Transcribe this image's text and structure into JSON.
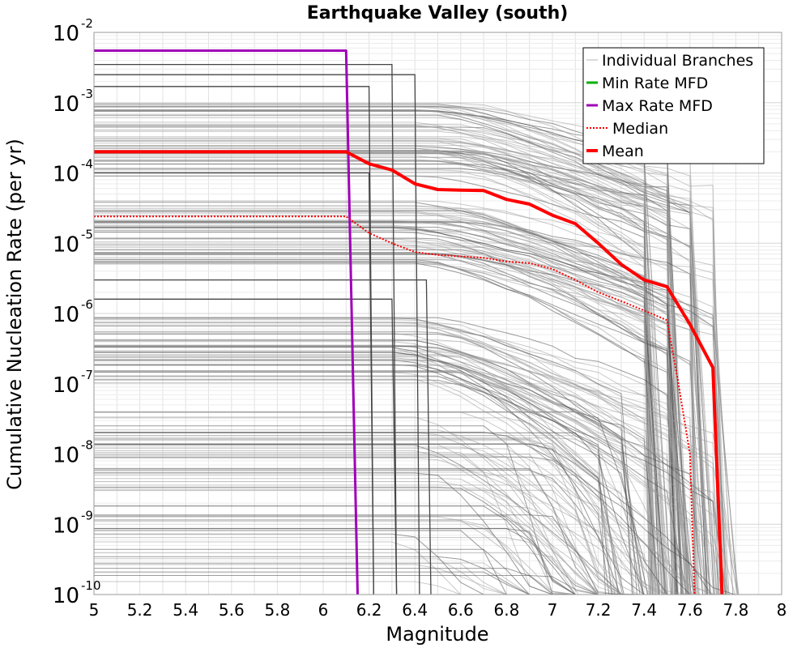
{
  "chart_data": {
    "type": "line",
    "title": "Earthquake Valley (south)",
    "xlabel": "Magnitude",
    "ylabel": "Cumulative Nucleation Rate (per yr)",
    "xlim": [
      5,
      8
    ],
    "ylim": [
      1e-10,
      0.01
    ],
    "yscale": "log",
    "grid": true,
    "legend_position": "top-right",
    "x_ticks": [
      "5",
      "5.2",
      "5.4",
      "5.6",
      "5.8",
      "6",
      "6.2",
      "6.4",
      "6.6",
      "6.8",
      "7",
      "7.2",
      "7.4",
      "7.6",
      "7.8",
      "8"
    ],
    "y_ticks": [
      {
        "base": "10",
        "exp": "-10"
      },
      {
        "base": "10",
        "exp": "-9"
      },
      {
        "base": "10",
        "exp": "-8"
      },
      {
        "base": "10",
        "exp": "-7"
      },
      {
        "base": "10",
        "exp": "-6"
      },
      {
        "base": "10",
        "exp": "-5"
      },
      {
        "base": "10",
        "exp": "-4"
      },
      {
        "base": "10",
        "exp": "-3"
      },
      {
        "base": "10",
        "exp": "-2"
      }
    ],
    "legend": [
      {
        "label": "Individual Branches",
        "color": "#b4b4b4",
        "style": "solid"
      },
      {
        "label": "Min Rate MFD",
        "color": "#00b000",
        "style": "solid"
      },
      {
        "label": "Max Rate MFD",
        "color": "#a000b8",
        "style": "solid"
      },
      {
        "label": "Median",
        "color": "#ff0000",
        "style": "dotted"
      },
      {
        "label": "Mean",
        "color": "#ff0000",
        "style": "solid"
      }
    ],
    "series": [
      {
        "name": "Max Rate MFD",
        "color": "#a000b8",
        "x": [
          5.0,
          6.1,
          6.15
        ],
        "y": [
          0.0055,
          0.0055,
          1e-10
        ]
      },
      {
        "name": "Median",
        "color": "#ff0000",
        "x": [
          5.0,
          6.1,
          6.2,
          6.3,
          6.4,
          6.5,
          6.6,
          6.7,
          6.8,
          6.9,
          7.0,
          7.1,
          7.2,
          7.3,
          7.4,
          7.5,
          7.55,
          7.6,
          7.62
        ],
        "y": [
          2.4e-05,
          2.4e-05,
          1.4e-05,
          1e-05,
          7.5e-06,
          6.8e-06,
          6.5e-06,
          6.2e-06,
          5.5e-06,
          5.2e-06,
          4.3e-06,
          3e-06,
          2e-06,
          1.5e-06,
          1.1e-06,
          8e-07,
          1e-07,
          1e-08,
          1e-10
        ]
      },
      {
        "name": "Mean",
        "color": "#ff0000",
        "x": [
          5.0,
          6.1,
          6.2,
          6.3,
          6.4,
          6.5,
          6.6,
          6.7,
          6.8,
          6.9,
          7.0,
          7.1,
          7.2,
          7.3,
          7.4,
          7.5,
          7.6,
          7.7,
          7.74
        ],
        "y": [
          0.0002,
          0.0002,
          0.000135,
          0.00011,
          7e-05,
          5.8e-05,
          5.7e-05,
          5.6e-05,
          4.2e-05,
          3.6e-05,
          2.5e-05,
          1.9e-05,
          1e-05,
          5e-06,
          3e-06,
          2.4e-06,
          7e-07,
          1.7e-07,
          1e-10
        ]
      }
    ],
    "branch_bands": [
      {
        "rate_low": 9e-05,
        "rate_high": 0.001,
        "fall_start": [
          6.4,
          6.7
        ],
        "fall_end": [
          7.4,
          7.75
        ],
        "drop_log": 1.1,
        "count": 60
      },
      {
        "rate_low": 5e-06,
        "rate_high": 4e-05,
        "fall_start": [
          6.3,
          6.7
        ],
        "fall_end": [
          7.4,
          7.8
        ],
        "drop_log": 1.2,
        "count": 55
      },
      {
        "rate_low": 1e-07,
        "rate_high": 9e-07,
        "fall_start": [
          6.3,
          6.6
        ],
        "fall_end": [
          7.2,
          7.8
        ],
        "drop_log": 1.6,
        "count": 50
      },
      {
        "rate_low": 3e-09,
        "rate_high": 4e-08,
        "fall_start": [
          6.4,
          7.2
        ],
        "fall_end": [
          7.0,
          7.8
        ],
        "drop_log": 2.5,
        "count": 45
      },
      {
        "rate_low": 1.5e-10,
        "rate_high": 2e-09,
        "fall_start": [
          6.3,
          7.0
        ],
        "fall_end": [
          6.9,
          7.6
        ],
        "drop_log": 2.0,
        "count": 25
      }
    ],
    "stepped_branches": [
      {
        "rate": 0.0035,
        "cutoff": 6.3
      },
      {
        "rate": 0.0025,
        "cutoff": 6.4
      },
      {
        "rate": 0.0017,
        "cutoff": 6.2
      },
      {
        "rate": 3e-06,
        "cutoff": 6.45
      },
      {
        "rate": 1.6e-06,
        "cutoff": 6.3
      },
      {
        "rate": 0.0001,
        "cutoff": 6.2
      }
    ]
  }
}
